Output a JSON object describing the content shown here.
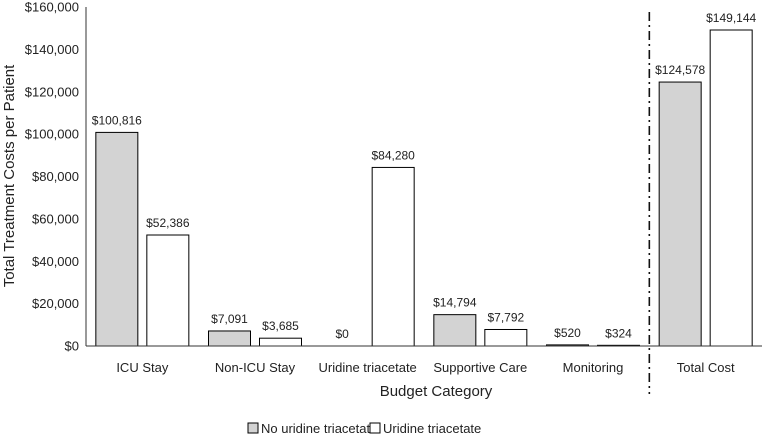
{
  "chart_data": {
    "type": "bar",
    "title": "",
    "xlabel": "Budget Category",
    "ylabel": "Total Treatment Costs per Patient",
    "ylim": [
      0,
      160000
    ],
    "yticks": [
      0,
      20000,
      40000,
      60000,
      80000,
      100000,
      120000,
      140000,
      160000
    ],
    "ytick_labels": [
      "$0",
      "$20,000",
      "$40,000",
      "$60,000",
      "$80,000",
      "$100,000",
      "$120,000",
      "$140,000",
      "$160,000"
    ],
    "categories": [
      "ICU Stay",
      "Non-ICU Stay",
      "Uridine triacetate",
      "Supportive Care",
      "Monitoring",
      "Total Cost"
    ],
    "series": [
      {
        "name": "No uridine triacetate",
        "color": "#d3d3d3",
        "values": [
          100816,
          7091,
          0,
          14794,
          520,
          124578
        ],
        "labels": [
          "$100,816",
          "$7,091",
          "$0",
          "$14,794",
          "$520",
          "$124,578"
        ]
      },
      {
        "name": "Uridine triacetate",
        "color": "#ffffff",
        "values": [
          52386,
          3685,
          84280,
          7792,
          324,
          149144
        ],
        "labels": [
          "$52,386",
          "$3,685",
          "$84,280",
          "$7,792",
          "$324",
          "$149,144"
        ]
      }
    ],
    "separator": {
      "style": "dash-dot",
      "between": [
        "Monitoring",
        "Total Cost"
      ]
    },
    "grid": false,
    "legend": {
      "position": "bottom-center"
    }
  }
}
